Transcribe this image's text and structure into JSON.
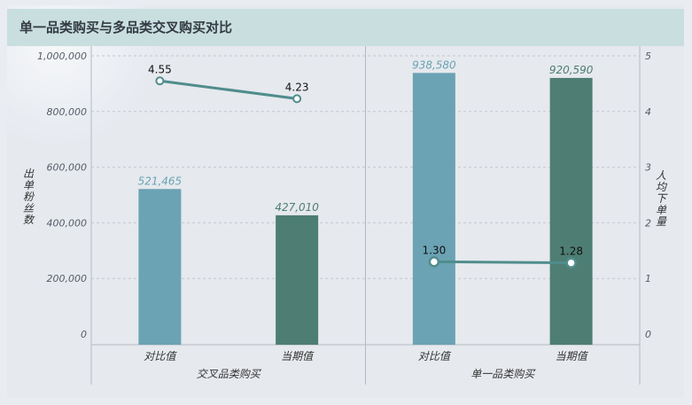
{
  "title": "单一品类购买与多品类交叉购买对比",
  "chart_data": {
    "type": "bar",
    "groups": [
      "交叉品类购买",
      "单一品类购买"
    ],
    "categories": [
      "对比值",
      "当期值"
    ],
    "left_axis": {
      "label": "出单粉丝数",
      "ticks": [
        "0",
        "200,000",
        "400,000",
        "600,000",
        "800,000",
        "1,000,000"
      ],
      "range": [
        0,
        1000000
      ]
    },
    "right_axis": {
      "label": "人均下单量",
      "ticks": [
        "0",
        "1",
        "2",
        "3",
        "4",
        "5"
      ],
      "range": [
        0,
        5
      ]
    },
    "series": [
      {
        "kind": "bar",
        "axis": "left",
        "values": [
          [
            521465,
            427010
          ],
          [
            938580,
            920590
          ]
        ],
        "labels": [
          [
            "521,465",
            "427,010"
          ],
          [
            "938,580",
            "920,590"
          ]
        ],
        "colors": [
          "#6ba3b4",
          "#4e7e73"
        ]
      },
      {
        "kind": "line",
        "axis": "right",
        "values": [
          [
            4.55,
            4.23
          ],
          [
            1.3,
            1.28
          ]
        ],
        "labels": [
          [
            "4.55",
            "4.23"
          ],
          [
            "1.30",
            "1.28"
          ]
        ],
        "color": "#4f8d8c"
      }
    ],
    "grid": true
  }
}
